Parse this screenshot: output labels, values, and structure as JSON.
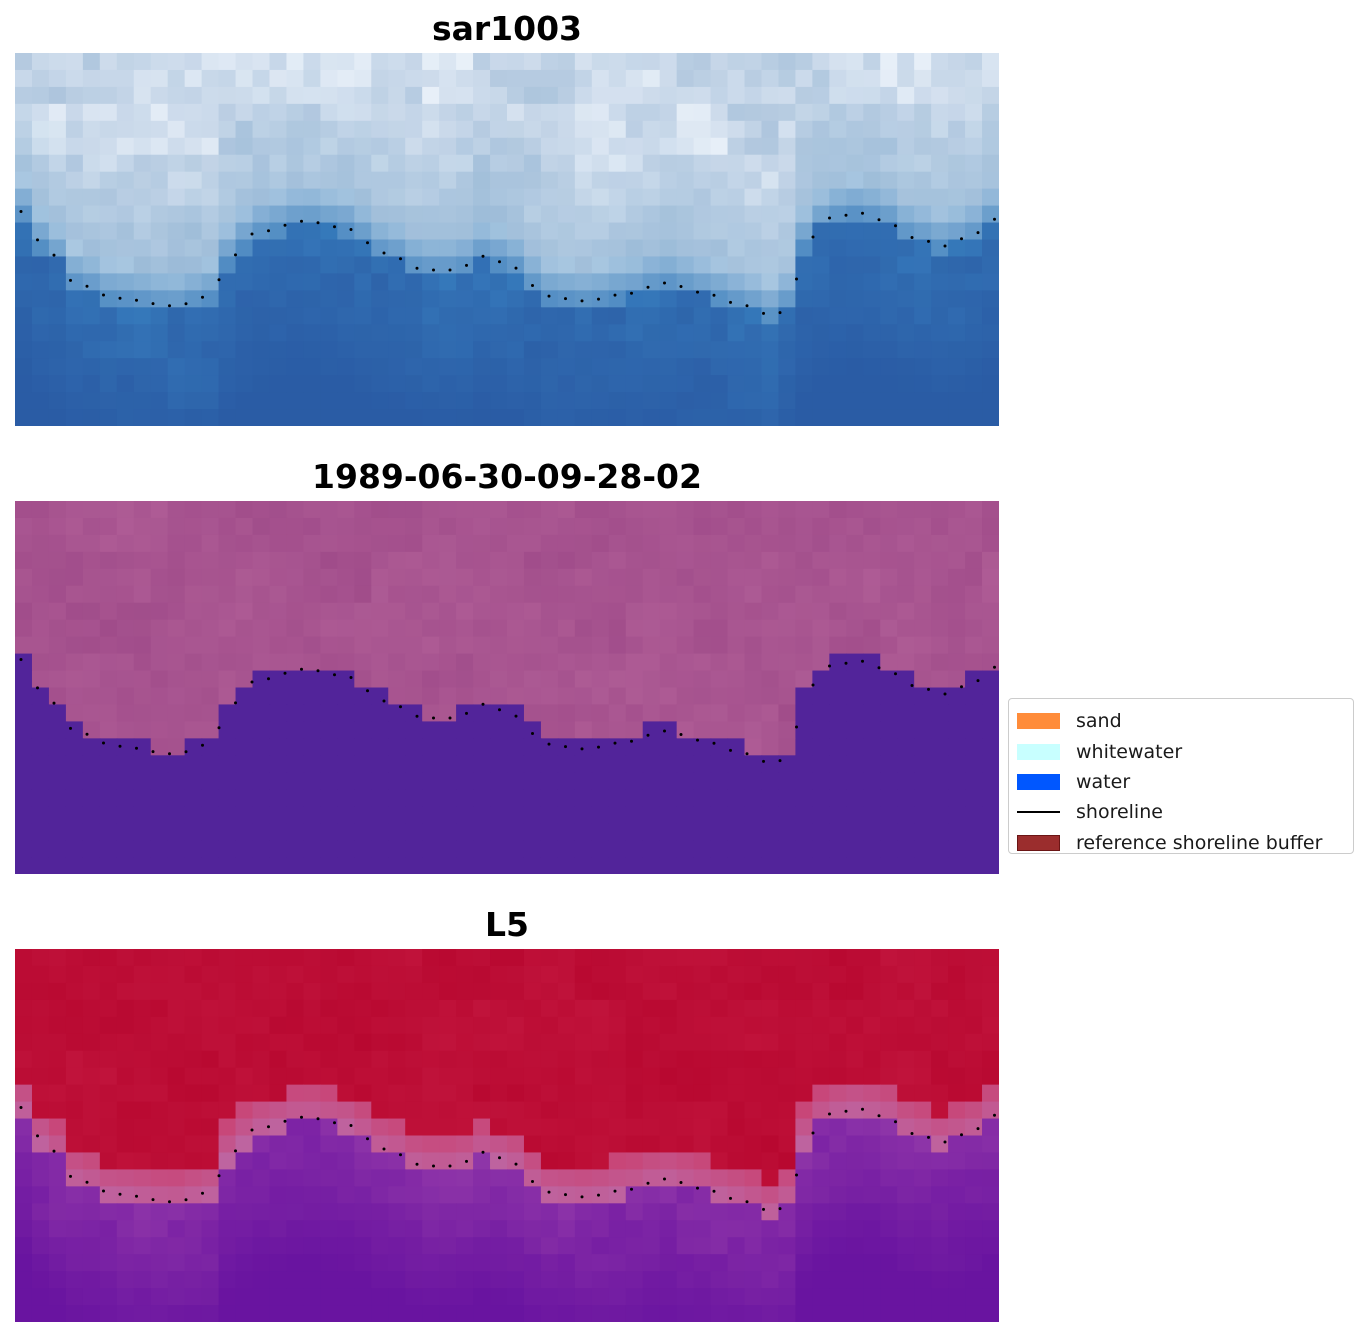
{
  "panels": [
    {
      "id": "top",
      "title": "sar1003",
      "colormap": "sar"
    },
    {
      "id": "mid",
      "title": "1989-06-30-09-28-02",
      "colormap": "classified"
    },
    {
      "id": "bot",
      "title": "L5",
      "colormap": "index"
    }
  ],
  "legend": {
    "items": [
      {
        "label": "sand",
        "type": "patch",
        "color": "#ff8c3a",
        "edge": ""
      },
      {
        "label": "whitewater",
        "type": "patch",
        "color": "#c8ffff",
        "edge": ""
      },
      {
        "label": "water",
        "type": "patch",
        "color": "#0057ff",
        "edge": ""
      },
      {
        "label": "shoreline",
        "type": "line",
        "color": "#000000",
        "edge": ""
      },
      {
        "label": "reference shoreline buffer",
        "type": "patch",
        "color": "#9b2d2d",
        "edge": "#6b1515"
      }
    ]
  },
  "colors": {
    "sar_land": "#d6e2ef",
    "sar_water": "#2f6db2",
    "classified_land": "#a5508f",
    "classified_water": "#52249a",
    "index_land": "#c0123a",
    "index_water": "#7a1f9e",
    "shoreline_dots": "#000000"
  }
}
